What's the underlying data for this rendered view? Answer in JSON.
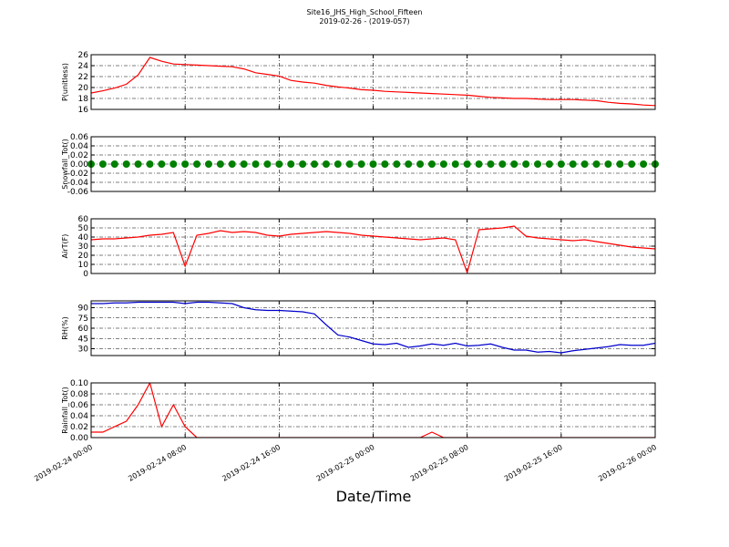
{
  "chart_data": [
    {
      "type": "line",
      "title": "Site16_JHS_High_School_Fifteen",
      "subtitle": "2019-02-26 - (2019-057)",
      "ylabel": "P(unitless)",
      "x": [
        "2019-02-24 00:00",
        "2019-02-24 01:00",
        "2019-02-24 02:00",
        "2019-02-24 03:00",
        "2019-02-24 04:00",
        "2019-02-24 05:00",
        "2019-02-24 06:00",
        "2019-02-24 07:00",
        "2019-02-24 08:00",
        "2019-02-24 09:00",
        "2019-02-24 10:00",
        "2019-02-24 11:00",
        "2019-02-24 12:00",
        "2019-02-24 13:00",
        "2019-02-24 14:00",
        "2019-02-24 15:00",
        "2019-02-24 16:00",
        "2019-02-24 17:00",
        "2019-02-24 18:00",
        "2019-02-24 19:00",
        "2019-02-24 20:00",
        "2019-02-24 21:00",
        "2019-02-24 22:00",
        "2019-02-24 23:00",
        "2019-02-25 00:00",
        "2019-02-25 01:00",
        "2019-02-25 02:00",
        "2019-02-25 03:00",
        "2019-02-25 04:00",
        "2019-02-25 05:00",
        "2019-02-25 06:00",
        "2019-02-25 07:00",
        "2019-02-25 08:00",
        "2019-02-25 09:00",
        "2019-02-25 10:00",
        "2019-02-25 11:00",
        "2019-02-25 12:00",
        "2019-02-25 13:00",
        "2019-02-25 14:00",
        "2019-02-25 15:00",
        "2019-02-25 16:00",
        "2019-02-25 17:00",
        "2019-02-25 18:00",
        "2019-02-25 19:00",
        "2019-02-25 20:00",
        "2019-02-25 21:00",
        "2019-02-25 22:00",
        "2019-02-25 23:00",
        "2019-02-26 00:00"
      ],
      "values": [
        19.0,
        19.4,
        19.9,
        20.6,
        22.3,
        25.5,
        24.8,
        24.3,
        24.2,
        24.1,
        24.0,
        23.9,
        23.8,
        23.4,
        22.7,
        22.4,
        22.1,
        21.3,
        21.0,
        20.8,
        20.4,
        20.1,
        19.9,
        19.6,
        19.5,
        19.3,
        19.2,
        19.1,
        19.0,
        18.9,
        18.8,
        18.7,
        18.6,
        18.4,
        18.2,
        18.1,
        18.0,
        18.0,
        17.9,
        17.8,
        17.8,
        17.8,
        17.7,
        17.6,
        17.3,
        17.1,
        17.0,
        16.8,
        16.7
      ],
      "color": "#ff0000",
      "xlim": [
        "2019-02-24 00:00",
        "2019-02-26 00:00"
      ],
      "xticks": [
        "2019-02-24 00:00",
        "2019-02-24 08:00",
        "2019-02-24 16:00",
        "2019-02-25 00:00",
        "2019-02-25 08:00",
        "2019-02-25 16:00",
        "2019-02-26 00:00"
      ],
      "ylim": [
        16,
        26
      ],
      "yticks": [
        16,
        18,
        20,
        22,
        24,
        26
      ],
      "grid": true
    },
    {
      "type": "scatter",
      "ylabel": "Snowfall_Tot()",
      "x": [
        "2019-02-24 00:00",
        "2019-02-24 01:00",
        "2019-02-24 02:00",
        "2019-02-24 03:00",
        "2019-02-24 04:00",
        "2019-02-24 05:00",
        "2019-02-24 06:00",
        "2019-02-24 07:00",
        "2019-02-24 08:00",
        "2019-02-24 09:00",
        "2019-02-24 10:00",
        "2019-02-24 11:00",
        "2019-02-24 12:00",
        "2019-02-24 13:00",
        "2019-02-24 14:00",
        "2019-02-24 15:00",
        "2019-02-24 16:00",
        "2019-02-24 17:00",
        "2019-02-24 18:00",
        "2019-02-24 19:00",
        "2019-02-24 20:00",
        "2019-02-24 21:00",
        "2019-02-24 22:00",
        "2019-02-24 23:00",
        "2019-02-25 00:00",
        "2019-02-25 01:00",
        "2019-02-25 02:00",
        "2019-02-25 03:00",
        "2019-02-25 04:00",
        "2019-02-25 05:00",
        "2019-02-25 06:00",
        "2019-02-25 07:00",
        "2019-02-25 08:00",
        "2019-02-25 09:00",
        "2019-02-25 10:00",
        "2019-02-25 11:00",
        "2019-02-25 12:00",
        "2019-02-25 13:00",
        "2019-02-25 14:00",
        "2019-02-25 15:00",
        "2019-02-25 16:00",
        "2019-02-25 17:00",
        "2019-02-25 18:00",
        "2019-02-25 19:00",
        "2019-02-25 20:00",
        "2019-02-25 21:00",
        "2019-02-25 22:00",
        "2019-02-25 23:00",
        "2019-02-26 00:00"
      ],
      "values": [
        0,
        0,
        0,
        0,
        0,
        0,
        0,
        0,
        0,
        0,
        0,
        0,
        0,
        0,
        0,
        0,
        0,
        0,
        0,
        0,
        0,
        0,
        0,
        0,
        0,
        0,
        0,
        0,
        0,
        0,
        0,
        0,
        0,
        0,
        0,
        0,
        0,
        0,
        0,
        0,
        0,
        0,
        0,
        0,
        0,
        0,
        0,
        0,
        0
      ],
      "color": "#008000",
      "xlim": [
        "2019-02-24 00:00",
        "2019-02-26 00:00"
      ],
      "xticks": [
        "2019-02-24 00:00",
        "2019-02-24 08:00",
        "2019-02-24 16:00",
        "2019-02-25 00:00",
        "2019-02-25 08:00",
        "2019-02-25 16:00",
        "2019-02-26 00:00"
      ],
      "ylim": [
        -0.06,
        0.06
      ],
      "yticks": [
        {
          "value": -0.06,
          "label": "-0.06"
        },
        {
          "value": -0.04,
          "label": "-0.04"
        },
        {
          "value": -0.02,
          "label": "-0.02"
        },
        {
          "value": 0,
          "label": "0.00"
        },
        {
          "value": 0.02,
          "label": "0.02"
        },
        {
          "value": 0.04,
          "label": "0.04"
        },
        {
          "value": 0.06,
          "label": "0.06"
        }
      ],
      "grid": true
    },
    {
      "type": "line",
      "ylabel": "AirT(F)",
      "x": [
        "2019-02-24 00:00",
        "2019-02-24 01:00",
        "2019-02-24 02:00",
        "2019-02-24 03:00",
        "2019-02-24 04:00",
        "2019-02-24 05:00",
        "2019-02-24 06:00",
        "2019-02-24 07:00",
        "2019-02-24 08:00",
        "2019-02-24 09:00",
        "2019-02-24 10:00",
        "2019-02-24 11:00",
        "2019-02-24 12:00",
        "2019-02-24 13:00",
        "2019-02-24 14:00",
        "2019-02-24 15:00",
        "2019-02-24 16:00",
        "2019-02-24 17:00",
        "2019-02-24 18:00",
        "2019-02-24 19:00",
        "2019-02-24 20:00",
        "2019-02-24 21:00",
        "2019-02-24 22:00",
        "2019-02-24 23:00",
        "2019-02-25 00:00",
        "2019-02-25 01:00",
        "2019-02-25 02:00",
        "2019-02-25 03:00",
        "2019-02-25 04:00",
        "2019-02-25 05:00",
        "2019-02-25 06:00",
        "2019-02-25 07:00",
        "2019-02-25 08:00",
        "2019-02-25 09:00",
        "2019-02-25 10:00",
        "2019-02-25 11:00",
        "2019-02-25 12:00",
        "2019-02-25 13:00",
        "2019-02-25 14:00",
        "2019-02-25 15:00",
        "2019-02-25 16:00",
        "2019-02-25 17:00",
        "2019-02-25 18:00",
        "2019-02-25 19:00",
        "2019-02-25 20:00",
        "2019-02-25 21:00",
        "2019-02-25 22:00",
        "2019-02-25 23:00",
        "2019-02-26 00:00"
      ],
      "values": [
        37,
        38,
        38,
        39,
        40,
        42,
        43,
        45,
        8,
        42,
        44,
        47,
        45,
        46,
        45,
        42,
        41,
        43,
        44,
        45,
        46,
        45,
        44,
        42,
        41,
        40,
        39,
        38,
        37,
        38,
        39,
        37,
        1,
        48,
        49,
        50,
        52,
        41,
        39,
        38,
        37,
        36,
        37,
        35,
        33,
        31,
        29,
        28,
        27
      ],
      "color": "#ff0000",
      "xlim": [
        "2019-02-24 00:00",
        "2019-02-26 00:00"
      ],
      "xticks": [
        "2019-02-24 00:00",
        "2019-02-24 08:00",
        "2019-02-24 16:00",
        "2019-02-25 00:00",
        "2019-02-25 08:00",
        "2019-02-25 16:00",
        "2019-02-26 00:00"
      ],
      "ylim": [
        0,
        60
      ],
      "yticks": [
        0,
        10,
        20,
        30,
        40,
        50,
        60
      ],
      "grid": true
    },
    {
      "type": "line",
      "ylabel": "RH(%)",
      "x": [
        "2019-02-24 00:00",
        "2019-02-24 01:00",
        "2019-02-24 02:00",
        "2019-02-24 03:00",
        "2019-02-24 04:00",
        "2019-02-24 05:00",
        "2019-02-24 06:00",
        "2019-02-24 07:00",
        "2019-02-24 08:00",
        "2019-02-24 09:00",
        "2019-02-24 10:00",
        "2019-02-24 11:00",
        "2019-02-24 12:00",
        "2019-02-24 13:00",
        "2019-02-24 14:00",
        "2019-02-24 15:00",
        "2019-02-24 16:00",
        "2019-02-24 17:00",
        "2019-02-24 18:00",
        "2019-02-24 19:00",
        "2019-02-24 20:00",
        "2019-02-24 21:00",
        "2019-02-24 22:00",
        "2019-02-24 23:00",
        "2019-02-25 00:00",
        "2019-02-25 01:00",
        "2019-02-25 02:00",
        "2019-02-25 03:00",
        "2019-02-25 04:00",
        "2019-02-25 05:00",
        "2019-02-25 06:00",
        "2019-02-25 07:00",
        "2019-02-25 08:00",
        "2019-02-25 09:00",
        "2019-02-25 10:00",
        "2019-02-25 11:00",
        "2019-02-25 12:00",
        "2019-02-25 13:00",
        "2019-02-25 14:00",
        "2019-02-25 15:00",
        "2019-02-25 16:00",
        "2019-02-25 17:00",
        "2019-02-25 18:00",
        "2019-02-25 19:00",
        "2019-02-25 20:00",
        "2019-02-25 21:00",
        "2019-02-25 22:00",
        "2019-02-25 23:00",
        "2019-02-26 00:00"
      ],
      "values": [
        96,
        96,
        97,
        97,
        98,
        98,
        98,
        98,
        96,
        98,
        98,
        97,
        96,
        90,
        87,
        86,
        86,
        85,
        84,
        81,
        65,
        50,
        47,
        42,
        37,
        36,
        38,
        32,
        34,
        37,
        35,
        38,
        34,
        35,
        37,
        32,
        28,
        28,
        25,
        26,
        24,
        27,
        29,
        31,
        33,
        36,
        35,
        35,
        38
      ],
      "color": "#0000cc",
      "xlim": [
        "2019-02-24 00:00",
        "2019-02-26 00:00"
      ],
      "xticks": [
        "2019-02-24 00:00",
        "2019-02-24 08:00",
        "2019-02-24 16:00",
        "2019-02-25 00:00",
        "2019-02-25 08:00",
        "2019-02-25 16:00",
        "2019-02-26 00:00"
      ],
      "ylim": [
        20,
        100
      ],
      "yticks": [
        30,
        45,
        60,
        75,
        90
      ],
      "grid": true
    },
    {
      "type": "line",
      "ylabel": "Rainfall_Tot()",
      "xlabel": "Date/Time",
      "x": [
        "2019-02-24 00:00",
        "2019-02-24 01:00",
        "2019-02-24 02:00",
        "2019-02-24 03:00",
        "2019-02-24 04:00",
        "2019-02-24 05:00",
        "2019-02-24 06:00",
        "2019-02-24 07:00",
        "2019-02-24 08:00",
        "2019-02-24 09:00",
        "2019-02-24 10:00",
        "2019-02-24 11:00",
        "2019-02-24 12:00",
        "2019-02-24 13:00",
        "2019-02-24 14:00",
        "2019-02-24 15:00",
        "2019-02-24 16:00",
        "2019-02-24 17:00",
        "2019-02-24 18:00",
        "2019-02-24 19:00",
        "2019-02-24 20:00",
        "2019-02-24 21:00",
        "2019-02-24 22:00",
        "2019-02-24 23:00",
        "2019-02-25 00:00",
        "2019-02-25 01:00",
        "2019-02-25 02:00",
        "2019-02-25 03:00",
        "2019-02-25 04:00",
        "2019-02-25 05:00",
        "2019-02-25 06:00",
        "2019-02-25 07:00",
        "2019-02-25 08:00",
        "2019-02-25 09:00",
        "2019-02-25 10:00",
        "2019-02-25 11:00",
        "2019-02-25 12:00",
        "2019-02-25 13:00",
        "2019-02-25 14:00",
        "2019-02-25 15:00",
        "2019-02-25 16:00",
        "2019-02-25 17:00",
        "2019-02-25 18:00",
        "2019-02-25 19:00",
        "2019-02-25 20:00",
        "2019-02-25 21:00",
        "2019-02-25 22:00",
        "2019-02-25 23:00",
        "2019-02-26 00:00"
      ],
      "values": [
        0.01,
        0.01,
        0.02,
        0.03,
        0.06,
        0.1,
        0.02,
        0.06,
        0.02,
        0,
        0,
        0,
        0,
        0,
        0,
        0,
        0,
        0,
        0,
        0,
        0,
        0,
        0,
        0,
        0,
        0,
        0,
        0,
        0,
        0.01,
        0,
        0,
        0,
        0,
        0,
        0,
        0,
        0,
        0,
        0,
        0,
        0,
        0,
        0,
        0,
        0,
        0,
        0,
        0
      ],
      "color": "#ff0000",
      "xlim": [
        "2019-02-24 00:00",
        "2019-02-26 00:00"
      ],
      "xticks": [
        "2019-02-24 00:00",
        "2019-02-24 08:00",
        "2019-02-24 16:00",
        "2019-02-25 00:00",
        "2019-02-25 08:00",
        "2019-02-25 16:00",
        "2019-02-26 00:00"
      ],
      "ylim": [
        0,
        0.1
      ],
      "yticks": [
        {
          "value": 0,
          "label": "0.00"
        },
        {
          "value": 0.02,
          "label": "0.02"
        },
        {
          "value": 0.04,
          "label": "0.04"
        },
        {
          "value": 0.06,
          "label": "0.06"
        },
        {
          "value": 0.08,
          "label": "0.08"
        },
        {
          "value": 0.1,
          "label": "0.10"
        }
      ],
      "grid": true
    }
  ]
}
